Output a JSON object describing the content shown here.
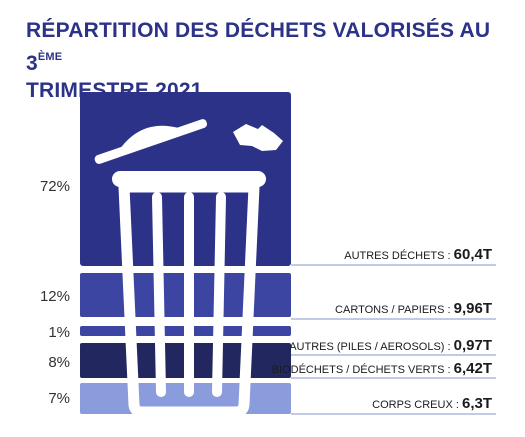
{
  "header": {
    "title_main": "RÉPARTITION DES DÉCHETS VALORISÉS AU 3",
    "title_sup": "ÈME",
    "title_line2": "TRIMESTRE 2021"
  },
  "chart_data": {
    "type": "bar",
    "title": "RÉPARTITION DES DÉCHETS VALORISÉS AU 3ÈME TRIMESTRE 2021",
    "categories": [
      "AUTRES DÉCHETS",
      "CARTONS / PAPIERS",
      "AUTRES (PILES / AEROSOLS)",
      "BIODÉCHETS / DÉCHETS VERTS",
      "CORPS CREUX"
    ],
    "series": [
      {
        "values": [
          60.4,
          9.96,
          0.97,
          6.42,
          6.3
        ]
      }
    ],
    "value_labels": [
      "60,4T",
      "9,96T",
      "0,97T",
      "6,42T",
      "6,3T"
    ],
    "percentages": [
      72,
      12,
      1,
      8,
      7
    ],
    "percent_labels": [
      "72%",
      "12%",
      "1%",
      "8%",
      "7%"
    ],
    "category_labels": [
      "AUTRES DÉCHETS :",
      "CARTONS / PAPIERS :",
      "AUTRES (PILES / AEROSOLS) :",
      "BIODÉCHETS / DÉCHETS VERTS :",
      "CORPS CREUX :"
    ],
    "colors": [
      "#2b3288",
      "#3c45a2",
      "#3c45a2",
      "#22285f",
      "#8a9cdc"
    ],
    "icon": "trash-can-icon"
  }
}
